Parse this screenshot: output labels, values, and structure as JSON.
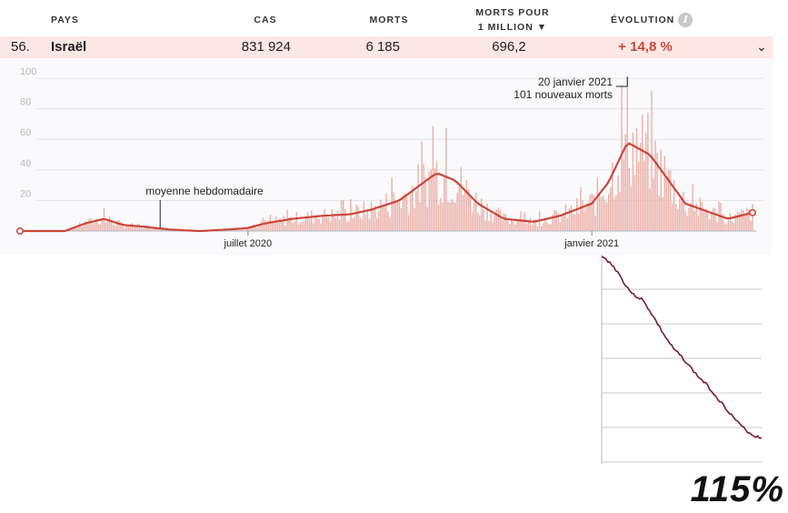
{
  "header": {
    "pays": "PAYS",
    "cas": "CAS",
    "morts": "MORTS",
    "morts_pour_line1": "MORTS POUR",
    "morts_pour_line2": "1 MILLION ▼",
    "evolution": "ÉVOLUTION",
    "info_icon": "info-icon",
    "info_glyph": "i"
  },
  "row": {
    "rank": "56.",
    "country": "Israël",
    "cases": "831 924",
    "deaths": "6 185",
    "deaths_per_million": "696,2",
    "evolution": "+ 14,8 %",
    "expand_icon": "chevron-down-icon",
    "expand_glyph": "⌄"
  },
  "chart_data": [
    {
      "type": "bar",
      "series": [
        {
          "name": "",
          "style": "bar",
          "color": "#ecb1a8",
          "x_range": [
            "2020-03-01",
            "2021-03-28"
          ],
          "values_daily_estimate": "shown as weekly-average envelope below with daily noise"
        },
        {
          "name": "moyenne hebdomadaire",
          "style": "line",
          "color": "#c9473a",
          "x": [
            "2020-03-01",
            "2020-03-25",
            "2020-04-05",
            "2020-04-15",
            "2020-04-25",
            "2020-05-05",
            "2020-05-20",
            "2020-06-05",
            "2020-06-20",
            "2020-07-01",
            "2020-07-10",
            "2020-07-25",
            "2020-08-10",
            "2020-08-25",
            "2020-09-05",
            "2020-09-20",
            "2020-10-01",
            "2020-10-10",
            "2020-10-20",
            "2020-11-01",
            "2020-11-15",
            "2020-12-01",
            "2020-12-15",
            "2021-01-01",
            "2021-01-10",
            "2021-01-20",
            "2021-02-01",
            "2021-02-10",
            "2021-02-20",
            "2021-03-01",
            "2021-03-15",
            "2021-03-28"
          ],
          "y": [
            0,
            0,
            5,
            8,
            4,
            3,
            1,
            0,
            1,
            2,
            5,
            8,
            10,
            11,
            14,
            20,
            30,
            38,
            33,
            18,
            8,
            6,
            10,
            18,
            32,
            58,
            50,
            35,
            18,
            14,
            8,
            12
          ]
        }
      ],
      "x_ticks": [
        "juillet 2020",
        "janvier 2021"
      ],
      "y_ticks": [
        20,
        40,
        60,
        80,
        100
      ],
      "ylim": [
        0,
        110
      ],
      "annotations": [
        {
          "text_line1": "20 janvier 2021",
          "text_line2": "101 nouveaux morts",
          "x": "2021-01-20",
          "y": 101
        },
        {
          "text": "moyenne hebdomadaire",
          "x": "2020-05-15"
        }
      ],
      "grid": "horizontal"
    },
    {
      "type": "line",
      "series": [
        {
          "name": "",
          "color": "#7a1a2c",
          "values": [
            100,
            97,
            92,
            85,
            80,
            78,
            72,
            65,
            58,
            52,
            48,
            43,
            38,
            34,
            29,
            24,
            19,
            14,
            10,
            7,
            6
          ]
        }
      ],
      "grid": "horizontal"
    }
  ],
  "big_label": "115%"
}
